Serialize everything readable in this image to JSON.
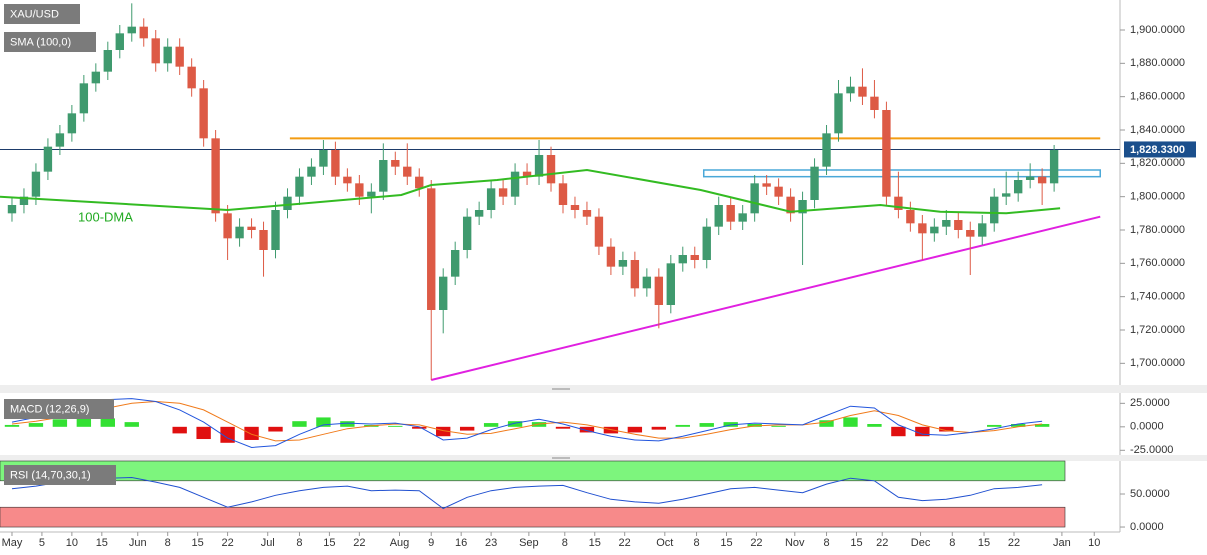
{
  "chart_data": [
    {
      "type": "candlestick",
      "title": "XAU/USD",
      "x": [
        0,
        2,
        4,
        6,
        8,
        10,
        12,
        14,
        16,
        18,
        20,
        22,
        24,
        26,
        28,
        30,
        32,
        34,
        36,
        38,
        40,
        42,
        44,
        46,
        48,
        50,
        52,
        54,
        56,
        58,
        60,
        62,
        64,
        66,
        68,
        70,
        72,
        74,
        76,
        78,
        80,
        82,
        84,
        86,
        88,
        90,
        92,
        94,
        96,
        98,
        100,
        102,
        104,
        106,
        108,
        110,
        112,
        114,
        116,
        118,
        120,
        122,
        124,
        126,
        128,
        130,
        132,
        134,
        136,
        138,
        140,
        142,
        144,
        146,
        148,
        150,
        152,
        154,
        156,
        158,
        160,
        162,
        164,
        166,
        168,
        170,
        172,
        174
      ],
      "open": [
        1790,
        1795,
        1800,
        1815,
        1830,
        1838,
        1850,
        1868,
        1875,
        1888,
        1898,
        1902,
        1895,
        1880,
        1890,
        1878,
        1865,
        1835,
        1790,
        1775,
        1782,
        1780,
        1768,
        1792,
        1800,
        1812,
        1818,
        1828,
        1812,
        1808,
        1800,
        1803,
        1822,
        1818,
        1812,
        1805,
        1732,
        1752,
        1768,
        1788,
        1792,
        1805,
        1800,
        1815,
        1812,
        1825,
        1808,
        1795,
        1792,
        1788,
        1770,
        1758,
        1762,
        1745,
        1752,
        1735,
        1760,
        1765,
        1762,
        1782,
        1795,
        1785,
        1790,
        1808,
        1806,
        1800,
        1790,
        1798,
        1818,
        1838,
        1862,
        1866,
        1860,
        1852,
        1800,
        1792,
        1784,
        1778,
        1782,
        1786,
        1780,
        1776,
        1784,
        1800,
        1802,
        1810,
        1812,
        1808
      ],
      "high": [
        1800,
        1805,
        1820,
        1835,
        1843,
        1855,
        1873,
        1880,
        1893,
        1903,
        1916,
        1907,
        1900,
        1895,
        1895,
        1883,
        1870,
        1840,
        1795,
        1787,
        1787,
        1785,
        1797,
        1805,
        1817,
        1823,
        1834,
        1833,
        1817,
        1813,
        1808,
        1832,
        1827,
        1832,
        1817,
        1810,
        1757,
        1773,
        1793,
        1797,
        1810,
        1810,
        1820,
        1820,
        1834,
        1830,
        1813,
        1800,
        1797,
        1793,
        1775,
        1767,
        1767,
        1757,
        1757,
        1765,
        1770,
        1770,
        1787,
        1800,
        1800,
        1795,
        1813,
        1813,
        1811,
        1805,
        1803,
        1823,
        1843,
        1870,
        1872,
        1877,
        1870,
        1857,
        1815,
        1797,
        1789,
        1787,
        1792,
        1791,
        1785,
        1789,
        1805,
        1815,
        1815,
        1820,
        1817,
        1831
      ],
      "low": [
        1785,
        1790,
        1795,
        1810,
        1825,
        1833,
        1845,
        1863,
        1870,
        1883,
        1893,
        1890,
        1875,
        1875,
        1873,
        1860,
        1830,
        1785,
        1762,
        1770,
        1775,
        1752,
        1763,
        1787,
        1795,
        1807,
        1813,
        1807,
        1803,
        1795,
        1790,
        1798,
        1813,
        1807,
        1800,
        1690,
        1718,
        1747,
        1763,
        1783,
        1787,
        1795,
        1795,
        1807,
        1807,
        1803,
        1790,
        1787,
        1783,
        1765,
        1753,
        1753,
        1740,
        1740,
        1721,
        1730,
        1755,
        1757,
        1757,
        1777,
        1780,
        1780,
        1785,
        1801,
        1795,
        1785,
        1759,
        1793,
        1813,
        1833,
        1857,
        1855,
        1847,
        1795,
        1787,
        1779,
        1762,
        1773,
        1777,
        1775,
        1753,
        1771,
        1779,
        1795,
        1797,
        1805,
        1795,
        1803
      ],
      "close": [
        1795,
        1800,
        1815,
        1830,
        1838,
        1850,
        1868,
        1875,
        1888,
        1898,
        1902,
        1895,
        1880,
        1890,
        1878,
        1865,
        1835,
        1790,
        1775,
        1782,
        1780,
        1768,
        1792,
        1800,
        1812,
        1818,
        1828,
        1812,
        1808,
        1800,
        1803,
        1822,
        1818,
        1812,
        1805,
        1732,
        1752,
        1768,
        1788,
        1792,
        1805,
        1800,
        1815,
        1812,
        1825,
        1808,
        1795,
        1792,
        1788,
        1770,
        1758,
        1762,
        1745,
        1752,
        1735,
        1760,
        1765,
        1762,
        1782,
        1795,
        1785,
        1790,
        1808,
        1806,
        1800,
        1790,
        1798,
        1818,
        1838,
        1862,
        1866,
        1860,
        1852,
        1800,
        1792,
        1784,
        1778,
        1782,
        1786,
        1780,
        1776,
        1784,
        1800,
        1802,
        1810,
        1812,
        1808,
        1828
      ],
      "up_color": "#3f9a6e",
      "down_color": "#dd5a45",
      "series": [
        {
          "name": "SMA (100,0)",
          "color": "#33bb22",
          "x": [
            -2,
            36,
            65,
            70,
            81,
            96,
            115,
            130,
            145,
            155,
            166,
            175
          ],
          "values": [
            1800,
            1792,
            1801,
            1807,
            1810,
            1816,
            1804,
            1791,
            1795,
            1791,
            1790,
            1793
          ]
        }
      ],
      "annotation": "100-DMA",
      "last_price": {
        "value": 1828.33,
        "label": "1,828.3300"
      },
      "resistance": {
        "value": 1835,
        "x": [
          46.4,
          181.7
        ],
        "color": "#f39c12"
      },
      "zone": {
        "values": [
          1812,
          1816
        ],
        "x": [
          115.5,
          181.7
        ],
        "color": "#4aa8d8"
      },
      "trendline": {
        "x": [
          70,
          181.7
        ],
        "values": [
          1690,
          1788
        ],
        "color": "#e020e0"
      },
      "xlim": [
        -2,
        185
      ],
      "ylim": [
        1687,
        1918
      ],
      "xticks": [
        {
          "value": 0,
          "label": "May"
        },
        5,
        10,
        15,
        {
          "value": 21,
          "label": "Jun"
        },
        {
          "value": 26,
          "label": "8"
        },
        {
          "value": 31,
          "label": "15"
        },
        {
          "value": 36,
          "label": "22"
        },
        {
          "value": 42.7,
          "label": "Jul"
        },
        {
          "value": 48,
          "label": "8"
        },
        {
          "value": 53,
          "label": "15"
        },
        {
          "value": 58,
          "label": "22"
        },
        {
          "value": 64.7,
          "label": "Aug"
        },
        {
          "value": 70,
          "label": "9"
        },
        {
          "value": 75,
          "label": "16"
        },
        {
          "value": 80,
          "label": "23"
        },
        {
          "value": 86.3,
          "label": "Sep"
        },
        {
          "value": 92.3,
          "label": "8"
        },
        {
          "value": 97.3,
          "label": "15"
        },
        {
          "value": 102.3,
          "label": "22"
        },
        {
          "value": 109,
          "label": "Oct"
        },
        {
          "value": 114.3,
          "label": "8"
        },
        {
          "value": 119.3,
          "label": "15"
        },
        {
          "value": 124.3,
          "label": "22"
        },
        {
          "value": 130.7,
          "label": "Nov"
        },
        {
          "value": 136,
          "label": "8"
        },
        {
          "value": 141,
          "label": "15"
        },
        {
          "value": 145.3,
          "label": "22"
        },
        {
          "value": 151.7,
          "label": "Dec"
        },
        {
          "value": 157,
          "label": "8"
        },
        {
          "value": 162.3,
          "label": "15"
        },
        {
          "value": 167.3,
          "label": "22"
        },
        {
          "value": 175.3,
          "label": "Jan"
        },
        {
          "value": 180.7,
          "label": "10"
        }
      ],
      "yticks": [
        {
          "value": 1700,
          "label": "1,700.0000"
        },
        {
          "value": 1720,
          "label": "1,720.0000"
        },
        {
          "value": 1740,
          "label": "1,740.0000"
        },
        {
          "value": 1760,
          "label": "1,760.0000"
        },
        {
          "value": 1780,
          "label": "1,780.0000"
        },
        {
          "value": 1800,
          "label": "1,800.0000"
        },
        {
          "value": 1820,
          "label": "1,820.0000"
        },
        {
          "value": 1840,
          "label": "1,840.0000"
        },
        {
          "value": 1860,
          "label": "1,860.0000"
        },
        {
          "value": 1880,
          "label": "1,880.0000"
        },
        {
          "value": 1900,
          "label": "1,900.0000"
        }
      ],
      "grid": false
    },
    {
      "type": "macd",
      "title": "MACD (12,26,9)",
      "x": [
        0,
        4,
        8,
        12,
        16,
        20,
        24,
        28,
        32,
        36,
        40,
        44,
        48,
        52,
        56,
        60,
        64,
        68,
        72,
        76,
        80,
        84,
        88,
        92,
        96,
        100,
        104,
        108,
        112,
        116,
        120,
        124,
        128,
        132,
        136,
        140,
        144,
        148,
        152,
        156,
        160,
        164,
        168,
        172
      ],
      "macd": {
        "color": "#2255dd",
        "values": [
          5,
          10,
          18,
          24,
          29,
          30,
          27,
          18,
          5,
          -12,
          -22,
          -20,
          -8,
          2,
          4,
          3,
          4,
          0,
          -14,
          -12,
          -3,
          4,
          8,
          3,
          -4,
          -10,
          -14,
          -15,
          -10,
          -4,
          2,
          4,
          3,
          2,
          12,
          22,
          20,
          2,
          -8,
          -9,
          -6,
          -2,
          3,
          6
        ]
      },
      "signal": {
        "color": "#f07a1a",
        "values": [
          3,
          6,
          10,
          15,
          20,
          25,
          27,
          25,
          18,
          5,
          -8,
          -15,
          -14,
          -8,
          -2,
          1,
          3,
          2,
          -4,
          -8,
          -7,
          -2,
          3,
          5,
          2,
          -3,
          -8,
          -12,
          -12,
          -8,
          -3,
          1,
          2,
          2,
          5,
          12,
          17,
          12,
          2,
          -4,
          -6,
          -4,
          0,
          3
        ]
      },
      "histogram": {
        "up_color": "#33e033",
        "down_color": "#e01010",
        "values": [
          2,
          4,
          8,
          9,
          9,
          5,
          0,
          -7,
          -13,
          -17,
          -14,
          -5,
          6,
          10,
          6,
          2,
          1,
          -2,
          -10,
          -4,
          4,
          6,
          5,
          -2,
          -6,
          -7,
          -6,
          -3,
          2,
          4,
          5,
          3,
          1,
          0,
          7,
          10,
          3,
          -10,
          -10,
          -5,
          0,
          2,
          3,
          3
        ]
      },
      "ylim": [
        -30,
        36
      ],
      "yticks": [
        {
          "value": 25,
          "label": "25.0000"
        },
        {
          "value": 0,
          "label": "0.0000"
        },
        {
          "value": -25,
          "label": "-25.0000"
        }
      ]
    },
    {
      "type": "line",
      "title": "RSI (14,70,30,1)",
      "x": [
        0,
        4,
        8,
        12,
        16,
        20,
        24,
        28,
        32,
        36,
        40,
        44,
        48,
        52,
        56,
        60,
        64,
        68,
        72,
        76,
        80,
        84,
        88,
        92,
        96,
        100,
        104,
        108,
        112,
        116,
        120,
        124,
        128,
        132,
        136,
        140,
        144,
        148,
        152,
        156,
        160,
        164,
        168,
        172
      ],
      "values": [
        58,
        62,
        68,
        72,
        74,
        75,
        68,
        60,
        45,
        30,
        38,
        48,
        55,
        60,
        62,
        55,
        56,
        55,
        28,
        45,
        55,
        60,
        62,
        63,
        52,
        42,
        38,
        36,
        42,
        50,
        58,
        60,
        56,
        52,
        65,
        74,
        70,
        45,
        40,
        42,
        48,
        58,
        60,
        64
      ],
      "color": "#2050d0",
      "bands": [
        {
          "range": [
            70,
            100
          ],
          "color": "#7df57d"
        },
        {
          "range": [
            0,
            30
          ],
          "color": "#f78a8a"
        }
      ],
      "ylim": [
        -4.5,
        100
      ],
      "yticks": [
        {
          "value": 50,
          "label": "50.0000"
        },
        {
          "value": 0,
          "label": "0.0000"
        }
      ]
    }
  ]
}
